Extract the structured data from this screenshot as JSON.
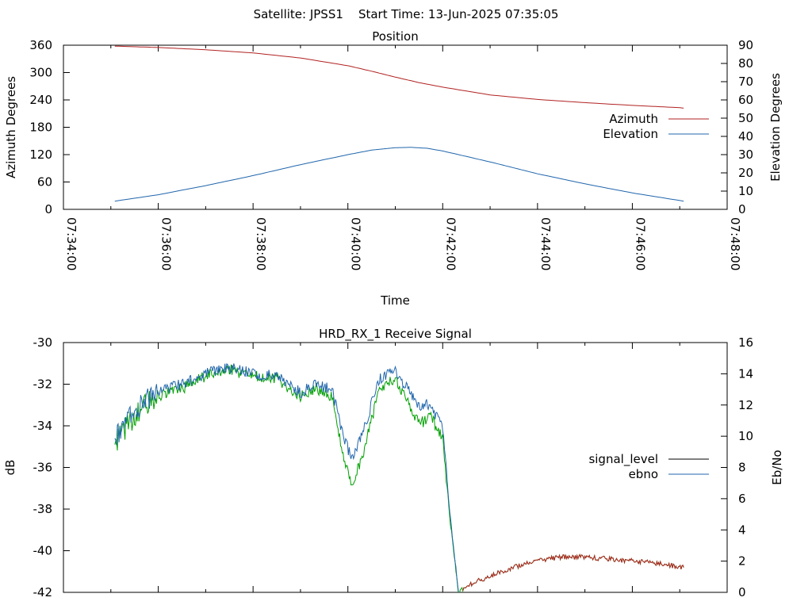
{
  "figure": {
    "header": "Satellite: JPSS1    Start Time: 13-Jun-2025 07:35:05"
  },
  "chart_data": [
    {
      "type": "line",
      "title": "Position",
      "xlabel": "Time",
      "ylabel": "Azimuth Degrees",
      "y2label": "Elevation Degrees",
      "x_ticks": [
        "07:34:00",
        "07:36:00",
        "07:38:00",
        "07:40:00",
        "07:42:00",
        "07:44:00",
        "07:46:00",
        "07:48:00"
      ],
      "xlim": [
        "07:34:00",
        "07:48:00"
      ],
      "ylim": [
        0,
        360
      ],
      "y_ticks": [
        0,
        60,
        120,
        180,
        240,
        300,
        360
      ],
      "y2lim": [
        0,
        90
      ],
      "y2_ticks": [
        0,
        10,
        20,
        30,
        40,
        50,
        60,
        70,
        80,
        90
      ],
      "legend_position": "right",
      "grid": false,
      "series": [
        {
          "name": "Azimuth",
          "axis": "left",
          "color": "#b22222",
          "x": [
            "07:35:05",
            "07:36:00",
            "07:37:00",
            "07:38:00",
            "07:39:00",
            "07:40:00",
            "07:40:30",
            "07:41:00",
            "07:41:30",
            "07:42:00",
            "07:43:00",
            "07:44:00",
            "07:45:00",
            "07:46:00",
            "07:47:00",
            "07:47:05"
          ],
          "values": [
            358,
            355,
            350,
            343,
            332,
            315,
            303,
            290,
            278,
            268,
            251,
            241,
            234,
            228,
            223,
            222
          ]
        },
        {
          "name": "Elevation",
          "axis": "right",
          "color": "#2166ac",
          "x": [
            "07:35:05",
            "07:36:00",
            "07:37:00",
            "07:38:00",
            "07:39:00",
            "07:40:00",
            "07:40:30",
            "07:41:00",
            "07:41:20",
            "07:41:40",
            "07:42:00",
            "07:43:00",
            "07:44:00",
            "07:45:00",
            "07:46:00",
            "07:47:05"
          ],
          "values": [
            4.5,
            8,
            13,
            18.5,
            24.5,
            30,
            32.5,
            33.8,
            34,
            33.5,
            32,
            26,
            19.5,
            14,
            9,
            4.5
          ]
        }
      ]
    },
    {
      "type": "line",
      "title": "HRD_RX_1 Receive Signal",
      "xlabel": "",
      "ylabel": "dB",
      "y2label": "Eb/No",
      "xlim": [
        "07:34:00",
        "07:48:00"
      ],
      "ylim": [
        -42,
        -30
      ],
      "y_ticks": [
        -42,
        -40,
        -38,
        -36,
        -34,
        -32,
        -30
      ],
      "y2lim": [
        0,
        16
      ],
      "y2_ticks": [
        0,
        2,
        4,
        6,
        8,
        10,
        12,
        14,
        16
      ],
      "legend_position": "right",
      "grid": false,
      "legend": [
        {
          "name": "signal_level",
          "color": "#000000"
        },
        {
          "name": "ebno",
          "color": "#2166ac"
        }
      ],
      "series": [
        {
          "name": "",
          "axis": "left",
          "color": "#00a000",
          "x": [
            "07:35:05",
            "07:35:20",
            "07:35:40",
            "07:36:00",
            "07:36:30",
            "07:37:00",
            "07:37:30",
            "07:38:00",
            "07:38:30",
            "07:39:00",
            "07:39:20",
            "07:39:40",
            "07:39:55",
            "07:40:05",
            "07:40:20",
            "07:40:40",
            "07:41:00",
            "07:41:15",
            "07:41:30",
            "07:41:45",
            "07:42:00",
            "07:42:10",
            "07:42:20",
            "07:42:30",
            "07:43:00",
            "07:43:30",
            "07:44:00",
            "07:44:30",
            "07:45:00",
            "07:45:30",
            "07:46:00",
            "07:46:30",
            "07:47:05"
          ],
          "values": [
            -34.9,
            -34.0,
            -33.1,
            -32.6,
            -32.2,
            -31.6,
            -31.3,
            -31.6,
            -31.7,
            -32.6,
            -32.2,
            -32.6,
            -35.6,
            -36.9,
            -35.2,
            -32.2,
            -31.7,
            -32.8,
            -33.9,
            -33.6,
            -34.6,
            -38.8,
            -42.0,
            -41.7,
            -41.2,
            -40.8,
            -40.5,
            -40.3,
            -40.3,
            -40.4,
            -40.5,
            -40.6,
            -40.8
          ]
        },
        {
          "name": "ebno",
          "axis": "left",
          "color": "#2166ac",
          "x": [
            "07:35:05",
            "07:35:20",
            "07:35:40",
            "07:36:00",
            "07:36:30",
            "07:37:00",
            "07:37:30",
            "07:38:00",
            "07:38:30",
            "07:39:00",
            "07:39:20",
            "07:39:40",
            "07:39:55",
            "07:40:05",
            "07:40:20",
            "07:40:40",
            "07:41:00",
            "07:41:15",
            "07:41:30",
            "07:41:45",
            "07:42:00",
            "07:42:10",
            "07:42:20"
          ],
          "values": [
            -34.6,
            -33.6,
            -32.9,
            -32.4,
            -32.0,
            -31.5,
            -31.2,
            -31.5,
            -31.6,
            -32.4,
            -32.0,
            -32.3,
            -34.6,
            -35.6,
            -34.2,
            -31.7,
            -31.4,
            -32.2,
            -33.0,
            -33.0,
            -34.2,
            -38.5,
            -42.0
          ]
        }
      ]
    }
  ]
}
